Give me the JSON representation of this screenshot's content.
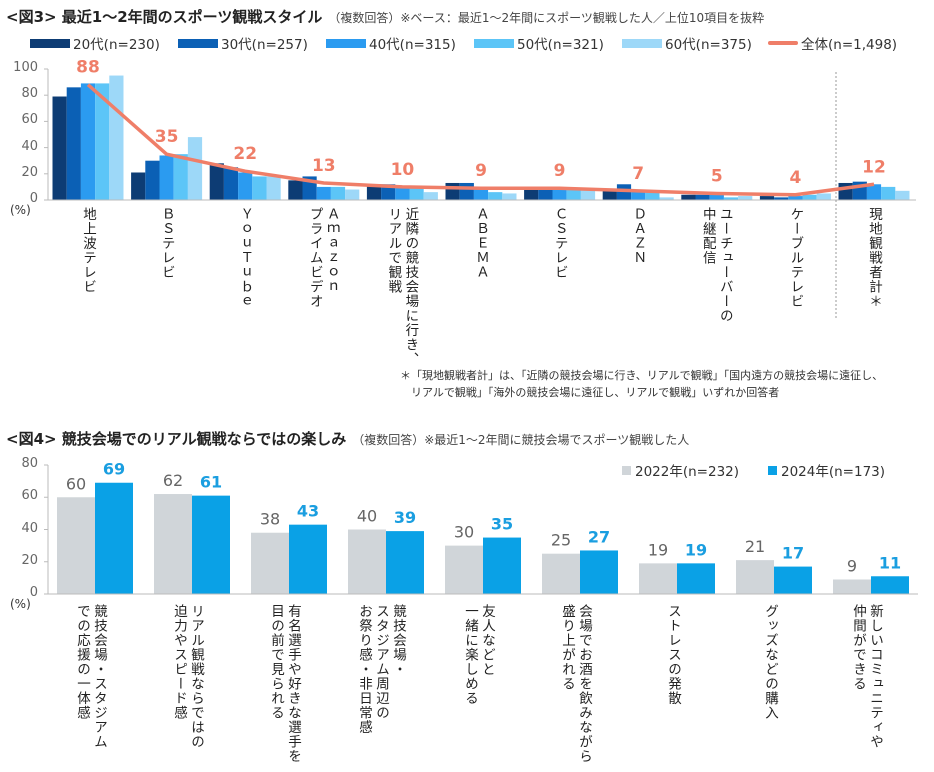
{
  "chart_data": [
    {
      "type": "bar+line",
      "title": "<図3> 最近1～2年間のスポーツ観戦スタイル",
      "subtitle": "（複数回答）※ベース：最近1～2年間にスポーツ観戦した人／上位10項目を抜粋",
      "ylabel": "(%)",
      "ylim": [
        0,
        100
      ],
      "yticks": [
        "0",
        "20",
        "40",
        "60",
        "80",
        "100"
      ],
      "legend_position": "top",
      "categories": [
        "地上波テレビ",
        "ＢＳテレビ",
        "ＹｏｕＴｕｂｅ",
        "Ａｍａｚｏｎ\nプライムビデオ",
        "近隣の競技会場に行き、\nリアルで観戦",
        "ＡＢＥＭＡ",
        "ＣＳテレビ",
        "ＤＡＺＮ",
        "ユーチューバーの\n中継配信",
        "ケーブルテレビ",
        "現地観戦者計＊"
      ],
      "series": [
        {
          "name": "20代(n=230)",
          "color": "#0d3c74",
          "values": [
            79,
            21,
            28,
            15,
            12,
            13,
            10,
            7,
            4,
            3,
            13
          ]
        },
        {
          "name": "30代(n=257)",
          "color": "#0b60b5",
          "values": [
            86,
            30,
            25,
            18,
            12,
            13,
            10,
            12,
            4,
            2,
            14
          ]
        },
        {
          "name": "40代(n=315)",
          "color": "#2b9bf0",
          "values": [
            89,
            34,
            21,
            10,
            10,
            9,
            9,
            8,
            6,
            3,
            12
          ]
        },
        {
          "name": "50代(n=321)",
          "color": "#5cc5f7",
          "values": [
            89,
            35,
            18,
            10,
            10,
            6,
            9,
            6,
            2,
            4,
            10
          ]
        },
        {
          "name": "60代(n=375)",
          "color": "#9dd8f8",
          "values": [
            95,
            48,
            18,
            8,
            6,
            5,
            9,
            2,
            3,
            5,
            7
          ]
        }
      ],
      "line": {
        "name": "全体(n=1,498)",
        "color": "#ef7e68",
        "values": [
          88,
          35,
          22,
          13,
          10,
          9,
          9,
          7,
          5,
          4,
          12
        ],
        "labels": [
          "88",
          "35",
          "22",
          "13",
          "10",
          "9",
          "9",
          "7",
          "5",
          "4",
          "12"
        ]
      },
      "footnote": "＊「現地観戦者計」は、「近隣の競技会場に行き、リアルで観戦」「国内遠方の競技会場に遠征し、\n　リアルで観戦」「海外の競技会場に遠征し、リアルで観戦」いずれか回答者"
    },
    {
      "type": "bar",
      "title": "<図4> 競技会場でのリアル観戦ならではの楽しみ",
      "subtitle": "（複数回答）※最近1～2年間に競技会場でスポーツ観戦した人",
      "ylabel": "(%)",
      "ylim": [
        0,
        80
      ],
      "yticks": [
        "0",
        "20",
        "40",
        "60",
        "80"
      ],
      "legend_position": "top-right",
      "categories": [
        "競技会場・スタジアム\nでの応援の一体感",
        "リアル観戦ならではの\n迫力やスピード感",
        "有名選手や好きな選手を\n目の前で見られる",
        "競技会場・\nスタジアム周辺の\nお祭り感・非日常感",
        "友人などと\n一緒に楽しめる",
        "会場でお酒を飲みながら\n盛り上がれる",
        "ストレスの発散",
        "グッズなどの購入",
        "新しいコミュニティや\n仲間ができる"
      ],
      "series": [
        {
          "name": "2022年(n=232)",
          "color": "#d0d5d9",
          "label_color": "#666666",
          "values": [
            60,
            62,
            38,
            40,
            30,
            25,
            19,
            21,
            9
          ]
        },
        {
          "name": "2024年(n=173)",
          "color": "#0aa1e6",
          "label_color": "#1a9ee0",
          "values": [
            69,
            61,
            43,
            39,
            35,
            27,
            19,
            17,
            11
          ]
        }
      ]
    }
  ]
}
